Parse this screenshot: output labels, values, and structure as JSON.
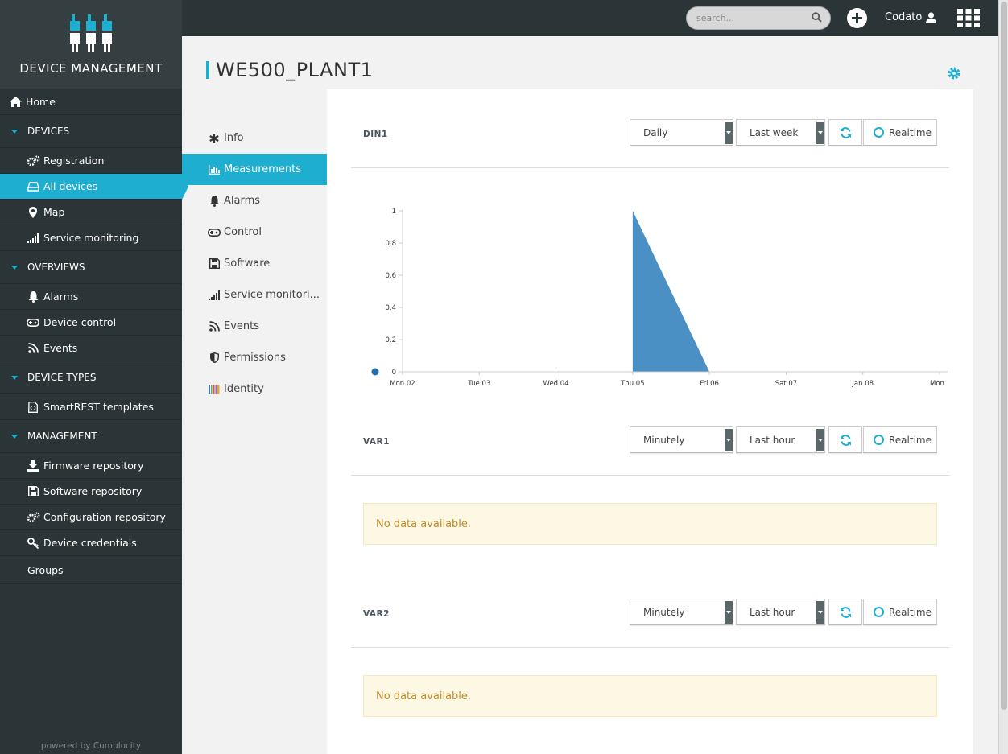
{
  "brand": {
    "title": "DEVICE MANAGEMENT",
    "powered": "powered by Cumulocity"
  },
  "sidebar": {
    "home": "Home",
    "sections": [
      {
        "label": "DEVICES",
        "items": [
          "Registration",
          "All devices",
          "Map",
          "Service monitoring"
        ]
      },
      {
        "label": "OVERVIEWS",
        "items": [
          "Alarms",
          "Device control",
          "Events"
        ]
      },
      {
        "label": "DEVICE TYPES",
        "items": [
          "SmartREST templates"
        ]
      },
      {
        "label": "MANAGEMENT",
        "items": [
          "Firmware repository",
          "Software repository",
          "Configuration repository",
          "Device credentials"
        ]
      }
    ],
    "groups": "Groups",
    "active": "All devices"
  },
  "topbar": {
    "search_placeholder": "search...",
    "user": "Codato"
  },
  "page": {
    "title": "WE500_PLANT1"
  },
  "subnav": {
    "items": [
      "Info",
      "Measurements",
      "Alarms",
      "Control",
      "Software",
      "Service monitori...",
      "Events",
      "Permissions",
      "Identity"
    ],
    "active": "Measurements"
  },
  "measurements": [
    {
      "name": "DIN1",
      "aggregation": "Daily",
      "range": "Last week",
      "realtime": "Realtime"
    },
    {
      "name": "VAR1",
      "aggregation": "Minutely",
      "range": "Last hour",
      "realtime": "Realtime",
      "message": "No data available."
    },
    {
      "name": "VAR2",
      "aggregation": "Minutely",
      "range": "Last hour",
      "realtime": "Realtime",
      "message": "No data available."
    }
  ],
  "chart_data": {
    "type": "area",
    "categories": [
      "Mon 02",
      "Tue 03",
      "Wed 04",
      "Thu 05",
      "Fri 06",
      "Sat 07",
      "Jan 08",
      "Mon"
    ],
    "yticks": [
      "0",
      "0.2",
      "0.4",
      "0.6",
      "0.8",
      "1"
    ],
    "ylim": [
      0,
      1
    ],
    "series": [
      {
        "x": [
          "Thu 05",
          "Thu 05",
          "Fri 06"
        ],
        "values": [
          0,
          1,
          0
        ],
        "color": "#4a90c4"
      }
    ],
    "legend": {
      "marker_color": "#1f6fb0",
      "placement": "bottom-left"
    },
    "grid": false
  }
}
